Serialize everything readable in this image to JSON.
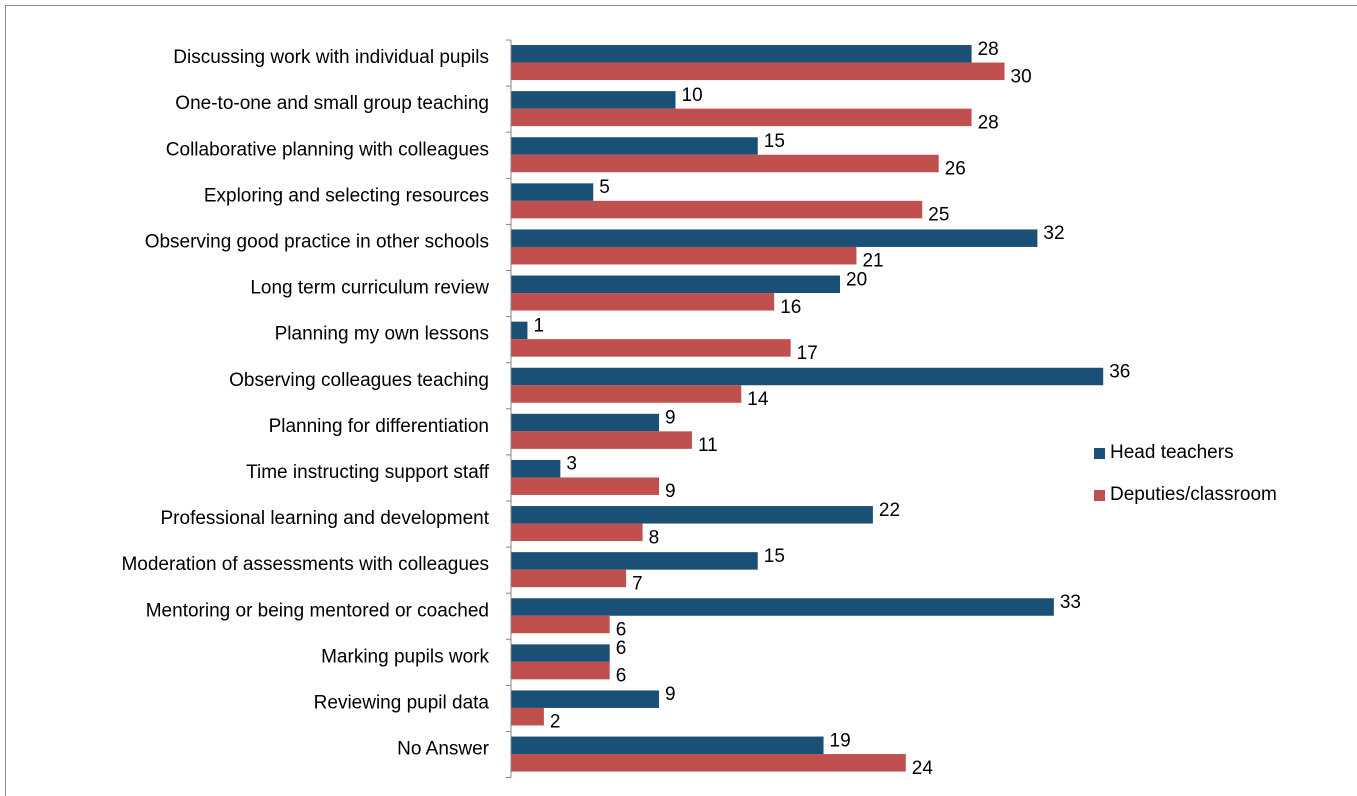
{
  "colors": {
    "head": "#1b5076",
    "deputies": "#c0504d",
    "axis": "#868686"
  },
  "chart_data": {
    "type": "bar",
    "orientation": "horizontal",
    "categories": [
      "Discussing work with individual pupils",
      "One-to-one and small group teaching",
      "Collaborative planning with colleagues",
      "Exploring and selecting resources",
      "Observing good practice in other schools",
      "Long term curriculum review",
      "Planning my own lessons",
      "Observing colleagues teaching",
      "Planning for differentiation",
      "Time instructing support staff",
      "Professional learning and development",
      "Moderation of assessments with colleagues",
      "Mentoring or being mentored or coached",
      "Marking pupils work",
      "Reviewing pupil data",
      "No  Answer"
    ],
    "series": [
      {
        "name": "Head teachers",
        "values": [
          28,
          10,
          15,
          5,
          32,
          20,
          1,
          36,
          9,
          3,
          22,
          15,
          33,
          6,
          9,
          19
        ]
      },
      {
        "name": "Deputies/classroom",
        "values": [
          30,
          28,
          26,
          25,
          21,
          16,
          17,
          14,
          11,
          9,
          8,
          7,
          6,
          6,
          2,
          24
        ]
      }
    ],
    "xlim": [
      0,
      40
    ],
    "grid": false,
    "legend_position": "right",
    "data_labels": true
  }
}
